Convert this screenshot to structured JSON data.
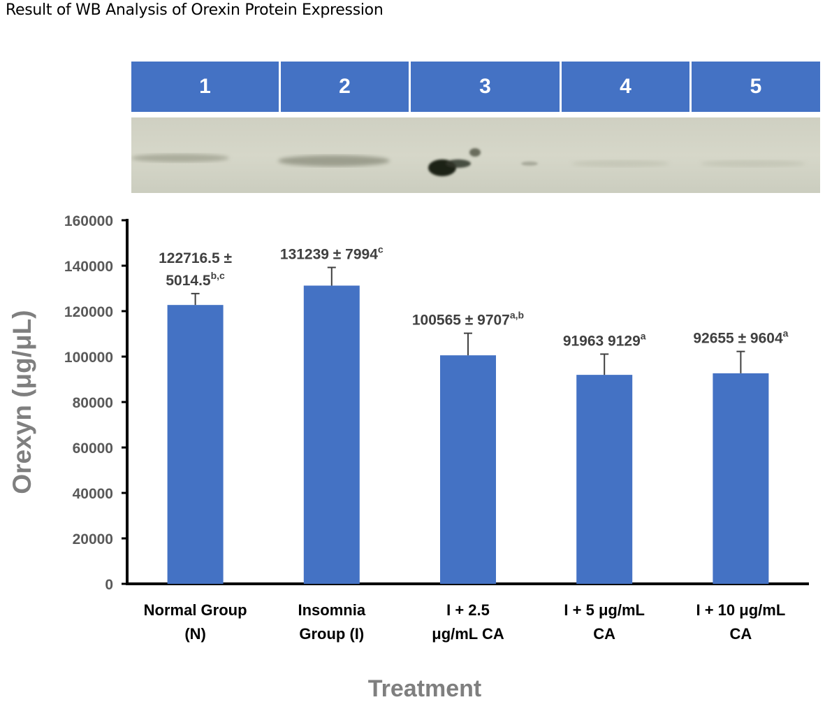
{
  "page": {
    "title": "Result of WB Analysis of Orexin Protein Expression"
  },
  "blot": {
    "lanes": [
      "1",
      "2",
      "3",
      "4",
      "5"
    ]
  },
  "colors": {
    "bar": "#4472c4",
    "lane_header": "#4472c4",
    "membrane": "#d2d3c4"
  },
  "chart_data": {
    "type": "bar",
    "categories": [
      [
        "Normal Group",
        "(N)"
      ],
      [
        "Insomnia",
        "Group (I)"
      ],
      [
        "I + 2.5",
        "μg/mL CA"
      ],
      [
        "I + 5 μg/mL",
        "CA"
      ],
      [
        "I + 10 μg/mL",
        "CA"
      ]
    ],
    "values": [
      122716.5,
      131239,
      100565,
      91963,
      92655
    ],
    "errors": [
      5014.5,
      7994,
      9707,
      9129,
      9604
    ],
    "data_labels": [
      [
        {
          "text": "122716.5 ±",
          "sup": ""
        },
        {
          "text": "5014.5",
          "sup": "b,c"
        }
      ],
      [
        {
          "text": "131239 ± 7994",
          "sup": "c"
        }
      ],
      [
        {
          "text": "100565 ± 9707",
          "sup": "a,b"
        }
      ],
      [
        {
          "text": "91963 9129",
          "sup": "a"
        }
      ],
      [
        {
          "text": "92655 ± 9604",
          "sup": "a"
        }
      ]
    ],
    "title": "",
    "xlabel": "Treatment",
    "ylabel": "Orexyn (μg/μL)",
    "ylim": [
      0,
      160000
    ],
    "yticks": [
      "0",
      "20000",
      "40000",
      "60000",
      "80000",
      "100000",
      "120000",
      "140000",
      "160000"
    ],
    "grid": false
  }
}
